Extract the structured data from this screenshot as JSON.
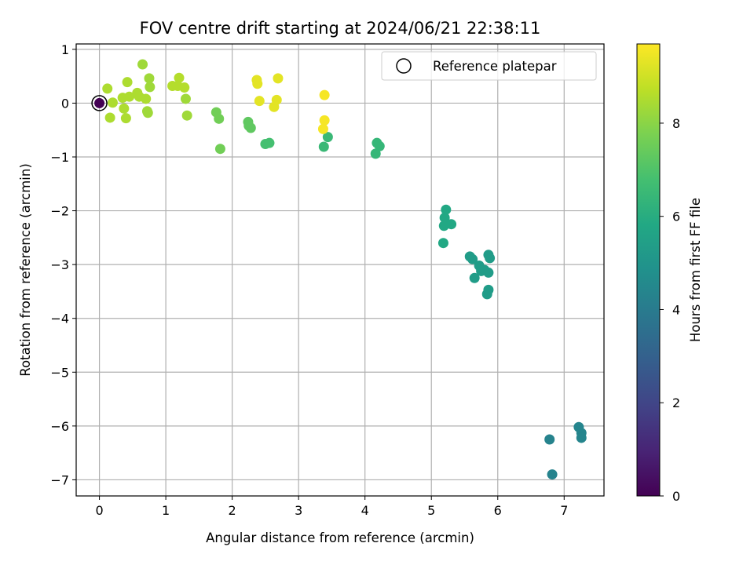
{
  "chart_data": {
    "type": "scatter",
    "title": "FOV centre drift starting at 2024/06/21 22:38:11",
    "xlabel": "Angular distance from reference (arcmin)",
    "ylabel": "Rotation from reference (arcmin)",
    "xlim": [
      -0.35,
      7.6
    ],
    "ylim": [
      -7.3,
      1.1
    ],
    "xticks": [
      0,
      1,
      2,
      3,
      4,
      5,
      6,
      7
    ],
    "xtick_labels": [
      "0",
      "1",
      "2",
      "3",
      "4",
      "5",
      "6",
      "7"
    ],
    "yticks": [
      1,
      0,
      -1,
      -2,
      -3,
      -4,
      -5,
      -6,
      -7
    ],
    "ytick_labels": [
      "1",
      "0",
      "−1",
      "−2",
      "−3",
      "−4",
      "−5",
      "−6",
      "−7"
    ],
    "grid": true,
    "colormap": "viridis",
    "colorbar": {
      "label": "Hours from first FF file",
      "range": [
        0,
        9.7
      ],
      "ticks": [
        0,
        2,
        4,
        6,
        8
      ],
      "tick_labels": [
        "0",
        "2",
        "4",
        "6",
        "8"
      ]
    },
    "legend": {
      "position": "top-right",
      "entries": [
        {
          "label": "Reference platepar",
          "marker": "open-circle"
        }
      ]
    },
    "reference_point": {
      "x": 0,
      "y": 0
    },
    "points": [
      {
        "x": 0.0,
        "y": 0.0,
        "h": 0.0
      },
      {
        "x": 6.78,
        "y": -6.25,
        "h": 4.3
      },
      {
        "x": 6.82,
        "y": -6.9,
        "h": 4.3
      },
      {
        "x": 7.22,
        "y": -6.02,
        "h": 4.4
      },
      {
        "x": 7.26,
        "y": -6.13,
        "h": 4.4
      },
      {
        "x": 7.26,
        "y": -6.22,
        "h": 4.4
      },
      {
        "x": 5.58,
        "y": -2.85,
        "h": 5.3
      },
      {
        "x": 5.62,
        "y": -2.9,
        "h": 5.3
      },
      {
        "x": 5.65,
        "y": -3.25,
        "h": 5.3
      },
      {
        "x": 5.72,
        "y": -3.02,
        "h": 5.3
      },
      {
        "x": 5.75,
        "y": -3.12,
        "h": 5.3
      },
      {
        "x": 5.8,
        "y": -3.1,
        "h": 5.3
      },
      {
        "x": 5.84,
        "y": -3.55,
        "h": 5.3
      },
      {
        "x": 5.86,
        "y": -3.47,
        "h": 5.3
      },
      {
        "x": 5.86,
        "y": -3.15,
        "h": 5.3
      },
      {
        "x": 5.86,
        "y": -2.82,
        "h": 5.3
      },
      {
        "x": 5.88,
        "y": -2.88,
        "h": 5.3
      },
      {
        "x": 5.18,
        "y": -2.6,
        "h": 5.8
      },
      {
        "x": 5.19,
        "y": -2.28,
        "h": 5.8
      },
      {
        "x": 5.2,
        "y": -2.13,
        "h": 5.8
      },
      {
        "x": 5.22,
        "y": -1.98,
        "h": 5.8
      },
      {
        "x": 5.3,
        "y": -2.25,
        "h": 5.8
      },
      {
        "x": 4.16,
        "y": -0.94,
        "h": 6.4
      },
      {
        "x": 4.18,
        "y": -0.74,
        "h": 6.4
      },
      {
        "x": 4.22,
        "y": -0.8,
        "h": 6.4
      },
      {
        "x": 3.38,
        "y": -0.81,
        "h": 6.5
      },
      {
        "x": 3.44,
        "y": -0.63,
        "h": 6.5
      },
      {
        "x": 2.5,
        "y": -0.76,
        "h": 6.8
      },
      {
        "x": 2.56,
        "y": -0.74,
        "h": 6.8
      },
      {
        "x": 2.24,
        "y": -0.35,
        "h": 7.3
      },
      {
        "x": 2.25,
        "y": -0.42,
        "h": 7.3
      },
      {
        "x": 2.28,
        "y": -0.46,
        "h": 7.3
      },
      {
        "x": 1.76,
        "y": -0.17,
        "h": 7.6
      },
      {
        "x": 1.8,
        "y": -0.29,
        "h": 7.6
      },
      {
        "x": 1.82,
        "y": -0.85,
        "h": 7.6
      },
      {
        "x": 0.65,
        "y": 0.72,
        "h": 8.3
      },
      {
        "x": 0.72,
        "y": -0.15,
        "h": 8.3
      },
      {
        "x": 0.73,
        "y": -0.18,
        "h": 8.3
      },
      {
        "x": 0.75,
        "y": 0.46,
        "h": 8.3
      },
      {
        "x": 0.76,
        "y": 0.3,
        "h": 8.3
      },
      {
        "x": 1.3,
        "y": 0.08,
        "h": 8.3
      },
      {
        "x": 1.32,
        "y": -0.23,
        "h": 8.3
      },
      {
        "x": 0.12,
        "y": 0.27,
        "h": 8.5
      },
      {
        "x": 0.16,
        "y": -0.27,
        "h": 8.5
      },
      {
        "x": 0.2,
        "y": 0.01,
        "h": 8.5
      },
      {
        "x": 0.35,
        "y": 0.1,
        "h": 8.5
      },
      {
        "x": 0.37,
        "y": -0.1,
        "h": 8.5
      },
      {
        "x": 0.4,
        "y": -0.28,
        "h": 8.5
      },
      {
        "x": 0.42,
        "y": 0.39,
        "h": 8.5
      },
      {
        "x": 0.45,
        "y": 0.12,
        "h": 8.5
      },
      {
        "x": 0.57,
        "y": 0.19,
        "h": 8.5
      },
      {
        "x": 0.6,
        "y": 0.12,
        "h": 8.5
      },
      {
        "x": 0.7,
        "y": 0.08,
        "h": 8.5
      },
      {
        "x": 1.1,
        "y": 0.32,
        "h": 8.6
      },
      {
        "x": 1.18,
        "y": 0.32,
        "h": 8.6
      },
      {
        "x": 1.2,
        "y": 0.47,
        "h": 8.6
      },
      {
        "x": 1.28,
        "y": 0.29,
        "h": 8.6
      },
      {
        "x": 2.37,
        "y": 0.43,
        "h": 9.3
      },
      {
        "x": 2.38,
        "y": 0.36,
        "h": 9.3
      },
      {
        "x": 2.41,
        "y": 0.04,
        "h": 9.3
      },
      {
        "x": 2.63,
        "y": -0.07,
        "h": 9.3
      },
      {
        "x": 2.67,
        "y": 0.06,
        "h": 9.3
      },
      {
        "x": 2.69,
        "y": 0.46,
        "h": 9.3
      },
      {
        "x": 3.37,
        "y": -0.48,
        "h": 9.6
      },
      {
        "x": 3.39,
        "y": -0.32,
        "h": 9.6
      },
      {
        "x": 3.39,
        "y": 0.15,
        "h": 9.6
      }
    ]
  }
}
